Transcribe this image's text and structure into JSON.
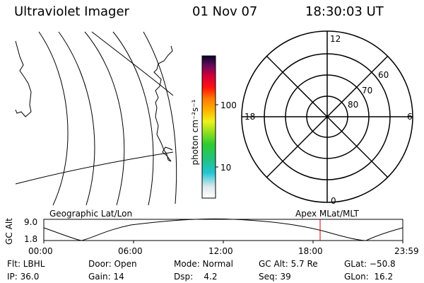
{
  "header": {
    "instrument": "Ultraviolet Imager",
    "date": "01 Nov 07",
    "time": "18:30:03 UT"
  },
  "colorbar": {
    "unit_label": "photon cm⁻²s⁻¹",
    "tick_100": "100",
    "tick_10": "10"
  },
  "polar_plot": {
    "mlt_labels": {
      "top": "12",
      "left": "18",
      "right": "6",
      "bottom": "0"
    },
    "lat_labels": [
      "60",
      "70",
      "80"
    ]
  },
  "geographic_label": "Geographic Lat/Lon",
  "apex_label": "Apex MLat/MLT",
  "altitude_plot": {
    "axis_title": "GC Alt",
    "y_ticks": [
      "9.0",
      "1.8"
    ],
    "x_ticks": [
      "00:00",
      "06:00",
      "12:00",
      "18:00",
      "23:59"
    ],
    "current_marker_color": "#cc0000"
  },
  "status": {
    "flt": "Flt: LBHL",
    "ip": "IP: 36.0",
    "door": "Door: Open",
    "gain": "Gain: 14",
    "mode": "Mode: Normal",
    "dsp": "Dsp:    4.2",
    "gc_alt": "GC Alt: 5.7 Re",
    "seq": "Seq: 39",
    "glat": "GLat: −50.8",
    "glon": "GLon:  16.2"
  }
}
